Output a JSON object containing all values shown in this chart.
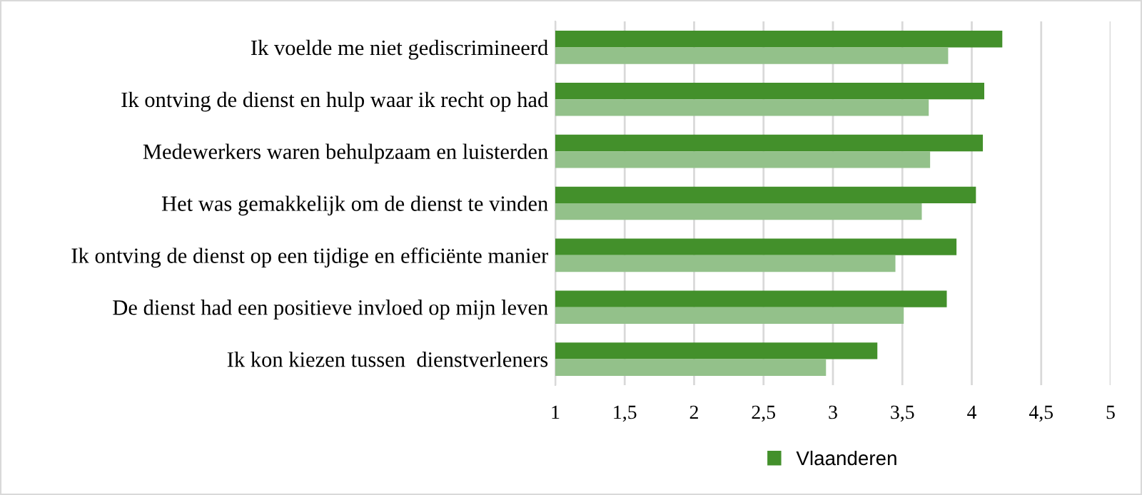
{
  "chart_data": {
    "type": "bar",
    "orientation": "horizontal",
    "categories": [
      "Ik voelde me niet gediscrimineerd",
      "Ik ontving de dienst en hulp waar ik recht op had",
      "Medewerkers waren behulpzaam en luisterden",
      "Het was gemakkelijk om de dienst te vinden",
      "Ik ontving de dienst op een tijdige en efficiënte manier",
      "De dienst had een positieve invloed op mijn leven",
      "Ik kon kiezen tussen  dienstverleners"
    ],
    "series": [
      {
        "name": "Vlaanderen",
        "color": "#43902b",
        "values": [
          4.22,
          4.09,
          4.08,
          4.03,
          3.89,
          3.82,
          3.32
        ]
      },
      {
        "color": "#93c18a",
        "values": [
          3.83,
          3.69,
          3.7,
          3.64,
          3.45,
          3.51,
          2.95
        ]
      }
    ],
    "xlim": [
      1,
      5
    ],
    "xticks": [
      1,
      {
        "value": 1.5,
        "label": "1,5"
      },
      2,
      {
        "value": 2.5,
        "label": "2,5"
      },
      3,
      {
        "value": 3.5,
        "label": "3,5"
      },
      4,
      {
        "value": 4.5,
        "label": "4,5"
      },
      5
    ],
    "grid": "x",
    "legend": "bottom"
  }
}
